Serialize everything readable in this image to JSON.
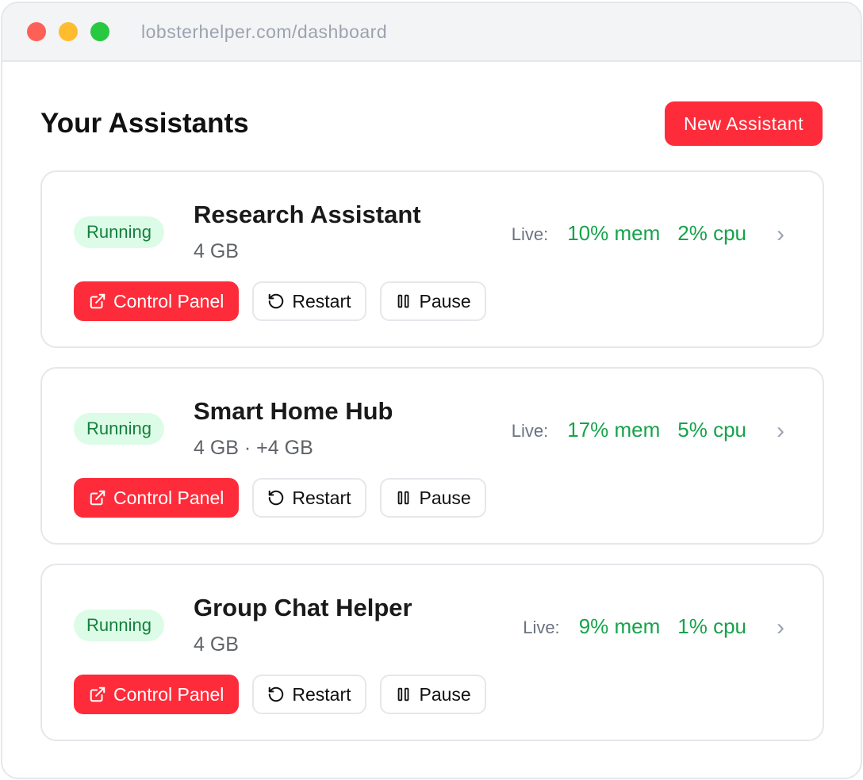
{
  "browser": {
    "url": "lobsterhelper.com/dashboard",
    "dots": [
      "#fe5f57",
      "#febc2e",
      "#28c840"
    ]
  },
  "header": {
    "title": "Your Assistants",
    "new_button": "New Assistant"
  },
  "colors": {
    "accent": "#fe2c3b",
    "running_bg": "#dcfce7",
    "running_text": "#15803d",
    "live_value": "#16a34a"
  },
  "assistants": [
    {
      "status": "Running",
      "name": "Research Assistant",
      "memory": "4 GB",
      "live_label": "Live:",
      "mem": "10% mem",
      "cpu": "2% cpu",
      "control_panel": "Control Panel",
      "restart": "Restart",
      "pause": "Pause"
    },
    {
      "status": "Running",
      "name": "Smart Home Hub",
      "memory": "4 GB · +4 GB",
      "live_label": "Live:",
      "mem": "17% mem",
      "cpu": "5% cpu",
      "control_panel": "Control Panel",
      "restart": "Restart",
      "pause": "Pause"
    },
    {
      "status": "Running",
      "name": "Group Chat Helper",
      "memory": "4 GB",
      "live_label": "Live:",
      "mem": "9% mem",
      "cpu": "1% cpu",
      "control_panel": "Control Panel",
      "restart": "Restart",
      "pause": "Pause"
    }
  ]
}
